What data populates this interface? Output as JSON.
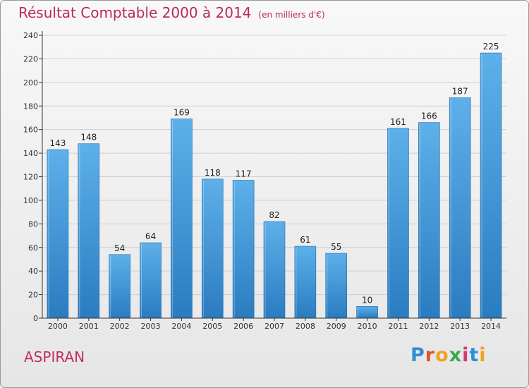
{
  "header": {
    "title": "Résultat Comptable 2000 à 2014",
    "unit": "(en milliers d'€)"
  },
  "footer": {
    "commune": "ASPIRAN",
    "brand": "Proxiti"
  },
  "colors": {
    "title": "#bb2a5a",
    "bar_light": "#5eb0ea",
    "bar_dark": "#2a7cc0",
    "grid": "#cfcfcf",
    "axis": "#333333"
  },
  "chart_data": {
    "type": "bar",
    "title": "Résultat Comptable 2000 à 2014",
    "subtitle": "(en milliers d'€)",
    "xlabel": "",
    "ylabel": "",
    "categories": [
      "2000",
      "2001",
      "2002",
      "2003",
      "2004",
      "2005",
      "2006",
      "2007",
      "2008",
      "2009",
      "2010",
      "2011",
      "2012",
      "2013",
      "2014"
    ],
    "values": [
      143,
      148,
      54,
      64,
      169,
      118,
      117,
      82,
      61,
      55,
      10,
      161,
      166,
      187,
      225
    ],
    "ylim": [
      0,
      240
    ],
    "yticks": [
      0,
      20,
      40,
      60,
      80,
      100,
      120,
      140,
      160,
      180,
      200,
      220,
      240
    ],
    "grid": true,
    "data_labels": true
  }
}
